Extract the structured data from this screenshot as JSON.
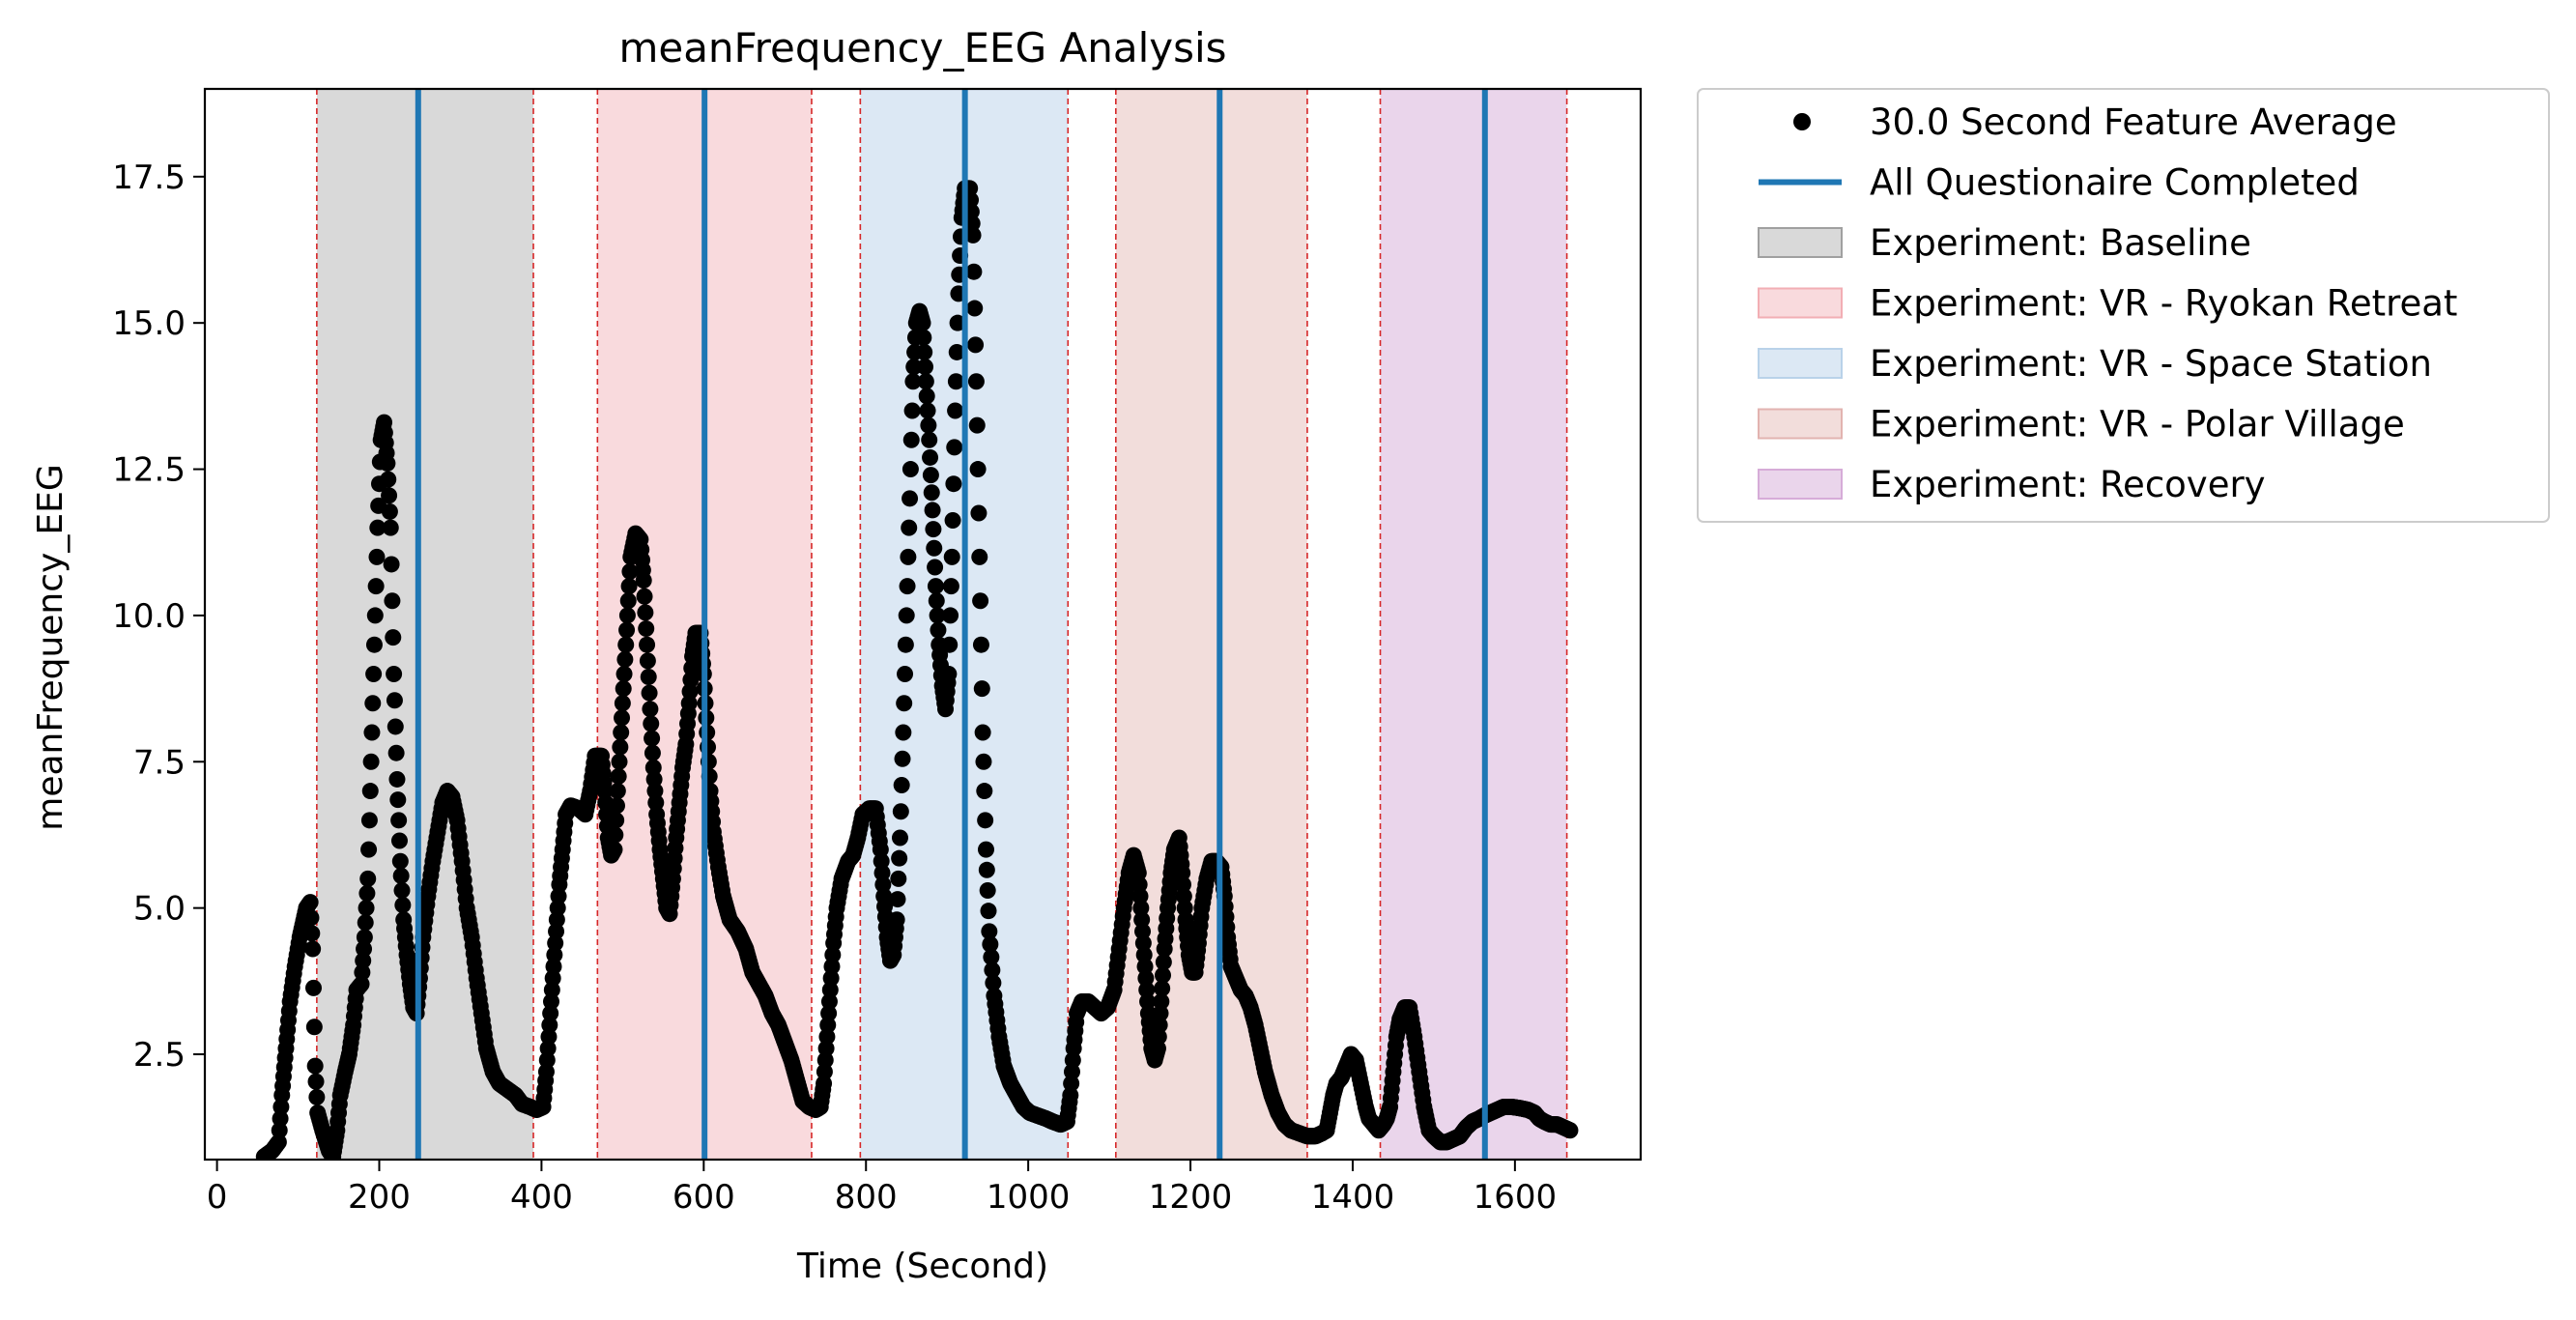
{
  "chart_data": {
    "type": "scatter",
    "title": "meanFrequency_EEG Analysis",
    "xlabel": "Time (Second)",
    "ylabel": "meanFrequency_EEG",
    "xlim": [
      -15,
      1755
    ],
    "ylim": [
      0.7,
      19.0
    ],
    "xticks": [
      0,
      200,
      400,
      600,
      800,
      1000,
      1200,
      1400,
      1600
    ],
    "yticks": [
      2.5,
      5.0,
      7.5,
      10.0,
      12.5,
      15.0,
      17.5
    ],
    "xtick_labels": [
      "0",
      "200",
      "400",
      "600",
      "800",
      "1000",
      "1200",
      "1400",
      "1600"
    ],
    "ytick_labels": [
      "2.5",
      "5.0",
      "7.5",
      "10.0",
      "12.5",
      "15.0",
      "17.5"
    ],
    "grid": false,
    "legend_position": "outside-right",
    "colors": {
      "points": "#000000",
      "questionnaire_line": "#1f77b4",
      "boundary_line": "#d62728"
    },
    "series": [
      {
        "name": "30.0 Second Feature Average",
        "kind": "scatter",
        "anchors": [
          [
            58,
            0.75
          ],
          [
            68,
            0.85
          ],
          [
            76,
            1.0
          ],
          [
            80,
            1.8
          ],
          [
            85,
            2.6
          ],
          [
            90,
            3.4
          ],
          [
            96,
            4.0
          ],
          [
            102,
            4.5
          ],
          [
            110,
            5.0
          ],
          [
            115,
            5.1
          ],
          [
            118,
            4.3
          ],
          [
            121,
            2.3
          ],
          [
            124,
            1.5
          ],
          [
            130,
            1.2
          ],
          [
            138,
            0.85
          ],
          [
            143,
            0.75
          ],
          [
            148,
            1.2
          ],
          [
            152,
            1.8
          ],
          [
            158,
            2.2
          ],
          [
            163,
            2.5
          ],
          [
            168,
            3.0
          ],
          [
            172,
            3.6
          ],
          [
            178,
            3.7
          ],
          [
            182,
            4.5
          ],
          [
            186,
            5.5
          ],
          [
            190,
            7.5
          ],
          [
            194,
            9.5
          ],
          [
            198,
            11.5
          ],
          [
            202,
            13.0
          ],
          [
            206,
            13.3
          ],
          [
            210,
            12.6
          ],
          [
            214,
            11.5
          ],
          [
            218,
            9.0
          ],
          [
            222,
            7.2
          ],
          [
            226,
            5.8
          ],
          [
            230,
            4.8
          ],
          [
            234,
            4.2
          ],
          [
            238,
            3.7
          ],
          [
            242,
            3.3
          ],
          [
            246,
            3.2
          ],
          [
            250,
            3.8
          ],
          [
            254,
            4.5
          ],
          [
            260,
            5.2
          ],
          [
            266,
            5.8
          ],
          [
            272,
            6.3
          ],
          [
            278,
            6.8
          ],
          [
            284,
            7.0
          ],
          [
            290,
            6.9
          ],
          [
            296,
            6.5
          ],
          [
            302,
            5.8
          ],
          [
            308,
            5.0
          ],
          [
            314,
            4.5
          ],
          [
            320,
            3.8
          ],
          [
            326,
            3.2
          ],
          [
            332,
            2.6
          ],
          [
            340,
            2.2
          ],
          [
            348,
            2.0
          ],
          [
            358,
            1.9
          ],
          [
            368,
            1.8
          ],
          [
            376,
            1.65
          ],
          [
            386,
            1.6
          ],
          [
            394,
            1.55
          ],
          [
            402,
            1.6
          ],
          [
            406,
            2.2
          ],
          [
            410,
            3.0
          ],
          [
            414,
            3.8
          ],
          [
            418,
            4.6
          ],
          [
            422,
            5.4
          ],
          [
            426,
            6.0
          ],
          [
            430,
            6.6
          ],
          [
            436,
            6.75
          ],
          [
            446,
            6.7
          ],
          [
            454,
            6.6
          ],
          [
            460,
            7.0
          ],
          [
            466,
            7.6
          ],
          [
            474,
            7.6
          ],
          [
            478,
            7.0
          ],
          [
            482,
            6.2
          ],
          [
            486,
            5.9
          ],
          [
            490,
            6.0
          ],
          [
            494,
            7.0
          ],
          [
            498,
            8.0
          ],
          [
            502,
            9.0
          ],
          [
            506,
            10.0
          ],
          [
            510,
            11.0
          ],
          [
            516,
            11.4
          ],
          [
            522,
            11.3
          ],
          [
            526,
            10.6
          ],
          [
            530,
            9.5
          ],
          [
            534,
            8.4
          ],
          [
            538,
            7.4
          ],
          [
            542,
            6.6
          ],
          [
            546,
            6.0
          ],
          [
            550,
            5.5
          ],
          [
            554,
            5.0
          ],
          [
            558,
            4.9
          ],
          [
            562,
            5.5
          ],
          [
            566,
            6.2
          ],
          [
            570,
            6.8
          ],
          [
            574,
            7.4
          ],
          [
            578,
            7.8
          ],
          [
            582,
            8.5
          ],
          [
            586,
            9.3
          ],
          [
            590,
            9.7
          ],
          [
            596,
            9.7
          ],
          [
            600,
            9.0
          ],
          [
            604,
            8.0
          ],
          [
            608,
            7.0
          ],
          [
            612,
            6.3
          ],
          [
            618,
            5.7
          ],
          [
            624,
            5.2
          ],
          [
            632,
            4.8
          ],
          [
            642,
            4.6
          ],
          [
            652,
            4.3
          ],
          [
            660,
            3.9
          ],
          [
            668,
            3.7
          ],
          [
            676,
            3.5
          ],
          [
            684,
            3.2
          ],
          [
            692,
            3.0
          ],
          [
            700,
            2.7
          ],
          [
            708,
            2.4
          ],
          [
            716,
            2.0
          ],
          [
            722,
            1.7
          ],
          [
            730,
            1.6
          ],
          [
            738,
            1.55
          ],
          [
            744,
            1.6
          ],
          [
            748,
            2.0
          ],
          [
            752,
            2.8
          ],
          [
            756,
            3.6
          ],
          [
            760,
            4.4
          ],
          [
            764,
            5.0
          ],
          [
            770,
            5.5
          ],
          [
            778,
            5.8
          ],
          [
            784,
            5.9
          ],
          [
            790,
            6.2
          ],
          [
            796,
            6.6
          ],
          [
            804,
            6.7
          ],
          [
            812,
            6.7
          ],
          [
            818,
            6.0
          ],
          [
            822,
            5.2
          ],
          [
            826,
            4.5
          ],
          [
            830,
            4.1
          ],
          [
            834,
            4.2
          ],
          [
            838,
            4.8
          ],
          [
            842,
            6.2
          ],
          [
            846,
            8.0
          ],
          [
            850,
            10.0
          ],
          [
            854,
            12.0
          ],
          [
            858,
            14.0
          ],
          [
            862,
            15.0
          ],
          [
            866,
            15.2
          ],
          [
            870,
            15.0
          ],
          [
            874,
            14.0
          ],
          [
            878,
            13.0
          ],
          [
            882,
            11.8
          ],
          [
            886,
            10.5
          ],
          [
            890,
            9.5
          ],
          [
            894,
            8.8
          ],
          [
            898,
            8.4
          ],
          [
            902,
            9.0
          ],
          [
            906,
            11.0
          ],
          [
            910,
            13.5
          ],
          [
            914,
            15.5
          ],
          [
            918,
            16.8
          ],
          [
            922,
            17.3
          ],
          [
            928,
            17.3
          ],
          [
            932,
            16.5
          ],
          [
            936,
            14.0
          ],
          [
            940,
            11.0
          ],
          [
            944,
            8.0
          ],
          [
            948,
            6.0
          ],
          [
            952,
            4.6
          ],
          [
            958,
            3.5
          ],
          [
            964,
            2.8
          ],
          [
            970,
            2.3
          ],
          [
            978,
            2.0
          ],
          [
            986,
            1.8
          ],
          [
            994,
            1.6
          ],
          [
            1002,
            1.5
          ],
          [
            1012,
            1.45
          ],
          [
            1022,
            1.4
          ],
          [
            1030,
            1.35
          ],
          [
            1040,
            1.3
          ],
          [
            1048,
            1.35
          ],
          [
            1052,
            1.8
          ],
          [
            1056,
            2.6
          ],
          [
            1060,
            3.2
          ],
          [
            1066,
            3.4
          ],
          [
            1074,
            3.4
          ],
          [
            1082,
            3.3
          ],
          [
            1090,
            3.2
          ],
          [
            1098,
            3.3
          ],
          [
            1106,
            3.6
          ],
          [
            1112,
            4.3
          ],
          [
            1118,
            5.0
          ],
          [
            1124,
            5.6
          ],
          [
            1130,
            5.9
          ],
          [
            1136,
            5.6
          ],
          [
            1140,
            4.8
          ],
          [
            1144,
            4.0
          ],
          [
            1148,
            3.2
          ],
          [
            1152,
            2.6
          ],
          [
            1156,
            2.4
          ],
          [
            1160,
            2.6
          ],
          [
            1164,
            3.4
          ],
          [
            1168,
            4.3
          ],
          [
            1172,
            5.0
          ],
          [
            1176,
            5.6
          ],
          [
            1180,
            6.0
          ],
          [
            1186,
            6.2
          ],
          [
            1190,
            5.6
          ],
          [
            1194,
            4.8
          ],
          [
            1198,
            4.2
          ],
          [
            1202,
            3.9
          ],
          [
            1206,
            3.9
          ],
          [
            1210,
            4.4
          ],
          [
            1214,
            5.0
          ],
          [
            1220,
            5.5
          ],
          [
            1226,
            5.8
          ],
          [
            1232,
            5.8
          ],
          [
            1238,
            5.7
          ],
          [
            1242,
            5.2
          ],
          [
            1246,
            4.5
          ],
          [
            1250,
            4.0
          ],
          [
            1256,
            3.8
          ],
          [
            1262,
            3.6
          ],
          [
            1268,
            3.5
          ],
          [
            1274,
            3.3
          ],
          [
            1280,
            3.0
          ],
          [
            1286,
            2.6
          ],
          [
            1292,
            2.2
          ],
          [
            1300,
            1.8
          ],
          [
            1308,
            1.5
          ],
          [
            1316,
            1.3
          ],
          [
            1324,
            1.2
          ],
          [
            1334,
            1.15
          ],
          [
            1344,
            1.1
          ],
          [
            1354,
            1.1
          ],
          [
            1362,
            1.15
          ],
          [
            1368,
            1.2
          ],
          [
            1372,
            1.5
          ],
          [
            1376,
            1.8
          ],
          [
            1380,
            2.0
          ],
          [
            1386,
            2.1
          ],
          [
            1392,
            2.3
          ],
          [
            1398,
            2.5
          ],
          [
            1404,
            2.4
          ],
          [
            1410,
            2.0
          ],
          [
            1416,
            1.6
          ],
          [
            1420,
            1.4
          ],
          [
            1426,
            1.3
          ],
          [
            1432,
            1.2
          ],
          [
            1438,
            1.3
          ],
          [
            1442,
            1.4
          ],
          [
            1446,
            1.6
          ],
          [
            1450,
            2.2
          ],
          [
            1454,
            2.8
          ],
          [
            1458,
            3.1
          ],
          [
            1464,
            3.3
          ],
          [
            1470,
            3.3
          ],
          [
            1476,
            2.8
          ],
          [
            1482,
            2.2
          ],
          [
            1488,
            1.6
          ],
          [
            1494,
            1.2
          ],
          [
            1500,
            1.1
          ],
          [
            1508,
            1.0
          ],
          [
            1516,
            1.0
          ],
          [
            1524,
            1.05
          ],
          [
            1532,
            1.1
          ],
          [
            1540,
            1.25
          ],
          [
            1548,
            1.35
          ],
          [
            1556,
            1.4
          ],
          [
            1562,
            1.45
          ],
          [
            1570,
            1.5
          ],
          [
            1578,
            1.55
          ],
          [
            1586,
            1.6
          ],
          [
            1596,
            1.6
          ],
          [
            1606,
            1.58
          ],
          [
            1616,
            1.55
          ],
          [
            1624,
            1.5
          ],
          [
            1630,
            1.4
          ],
          [
            1636,
            1.35
          ],
          [
            1644,
            1.3
          ],
          [
            1652,
            1.3
          ],
          [
            1660,
            1.25
          ],
          [
            1668,
            1.2
          ]
        ],
        "density_per_unit": 0.9
      },
      {
        "name": "All Questionaire Completed",
        "kind": "vline",
        "x": [
          248,
          601,
          922,
          1236,
          1563
        ]
      }
    ],
    "regions": [
      {
        "name": "Experiment: Baseline",
        "start": 123,
        "end": 390,
        "color": "#a0a0a0",
        "opacity": 0.4
      },
      {
        "name": "Experiment: VR - Ryokan Retreat",
        "start": 469,
        "end": 733,
        "color": "#f2aeb4",
        "opacity": 0.45
      },
      {
        "name": "Experiment: VR - Space Station",
        "start": 793,
        "end": 1049,
        "color": "#b9d2e9",
        "opacity": 0.5
      },
      {
        "name": "Experiment: VR - Polar Village",
        "start": 1108,
        "end": 1344,
        "color": "#e2b3b0",
        "opacity": 0.45
      },
      {
        "name": "Experiment: Recovery",
        "start": 1434,
        "end": 1664,
        "color": "#d6acd8",
        "opacity": 0.5
      }
    ]
  }
}
